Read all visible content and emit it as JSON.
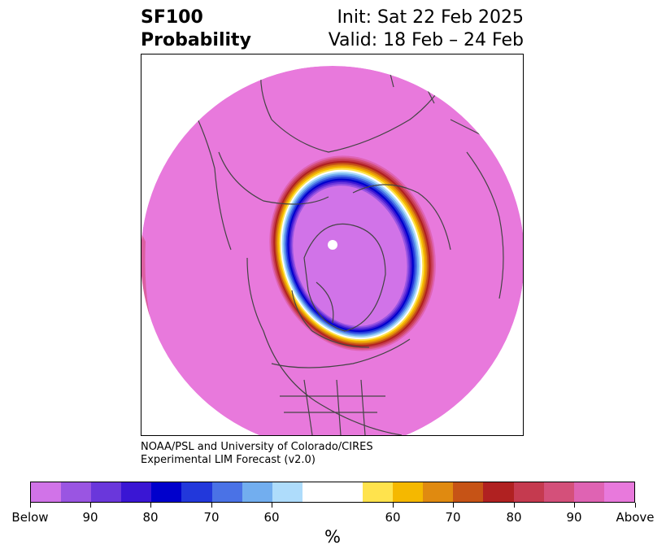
{
  "title": {
    "left_line1": "SF100",
    "left_line2": "Probability",
    "right_line1": "Init: Sat 22 Feb 2025",
    "right_line2": "Valid: 18 Feb – 24 Feb"
  },
  "credit": {
    "line1": "NOAA/PSL and University of Colorado/CIRES",
    "line2": "Experimental LIM Forecast (v2.0)"
  },
  "colorbar": {
    "unit_label": "%",
    "colors": [
      "#d173e8",
      "#9a55e2",
      "#6a37db",
      "#3a16d4",
      "#0000cc",
      "#2238db",
      "#4a72e6",
      "#72aeef",
      "#aedcfb",
      "#ffffff",
      "#ffffff",
      "#ffe34d",
      "#f5b800",
      "#e08a10",
      "#c65316",
      "#b02121",
      "#c53a4f",
      "#d4507a",
      "#df63b3",
      "#e879dc"
    ],
    "tick_labels": [
      "Below",
      "90",
      "80",
      "70",
      "60",
      "60",
      "70",
      "80",
      "90",
      "Above"
    ]
  },
  "map": {
    "fill_outer": "#e879dc",
    "ring_colors_outer_to_inner": [
      "#df63b3",
      "#d4507a",
      "#c53a4f",
      "#b02121",
      "#c65316",
      "#e08a10",
      "#f5b800",
      "#ffe34d",
      "#ffffff",
      "#aedcfb",
      "#72aeef",
      "#4a72e6",
      "#2238db",
      "#0000cc",
      "#3a16d4",
      "#6a37db",
      "#9a55e2",
      "#d173e8"
    ],
    "coastline_color": "#444444"
  }
}
